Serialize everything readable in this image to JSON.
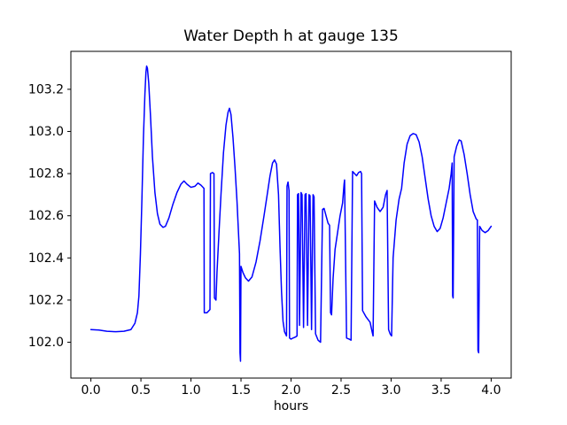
{
  "figure": {
    "background": "#ffffff",
    "frame_color": "#000000"
  },
  "chart_data": {
    "type": "line",
    "title": "Water Depth h at gauge 135",
    "xlabel": "hours",
    "ylabel": "",
    "grid": false,
    "legend": null,
    "xlim": [
      -0.2,
      4.2
    ],
    "ylim": [
      101.83,
      103.38
    ],
    "xticks": [
      {
        "value": 0.0,
        "label": "0.0"
      },
      {
        "value": 0.5,
        "label": "0.5"
      },
      {
        "value": 1.0,
        "label": "1.0"
      },
      {
        "value": 1.5,
        "label": "1.5"
      },
      {
        "value": 2.0,
        "label": "2.0"
      },
      {
        "value": 2.5,
        "label": "2.5"
      },
      {
        "value": 3.0,
        "label": "3.0"
      },
      {
        "value": 3.5,
        "label": "3.5"
      },
      {
        "value": 4.0,
        "label": "4.0"
      }
    ],
    "yticks": [
      {
        "value": 102.0,
        "label": "102.0"
      },
      {
        "value": 102.2,
        "label": "102.2"
      },
      {
        "value": 102.4,
        "label": "102.4"
      },
      {
        "value": 102.6,
        "label": "102.6"
      },
      {
        "value": 102.8,
        "label": "102.8"
      },
      {
        "value": 103.0,
        "label": "103.0"
      },
      {
        "value": 103.2,
        "label": "103.2"
      }
    ],
    "series": [
      {
        "name": "water depth h",
        "color": "#0000ff",
        "line_width": 1.5,
        "points": [
          [
            0.0,
            102.06
          ],
          [
            0.08,
            102.058
          ],
          [
            0.16,
            102.052
          ],
          [
            0.25,
            102.05
          ],
          [
            0.33,
            102.052
          ],
          [
            0.4,
            102.06
          ],
          [
            0.44,
            102.09
          ],
          [
            0.465,
            102.14
          ],
          [
            0.48,
            102.22
          ],
          [
            0.495,
            102.42
          ],
          [
            0.51,
            102.68
          ],
          [
            0.525,
            102.97
          ],
          [
            0.54,
            103.18
          ],
          [
            0.55,
            103.28
          ],
          [
            0.557,
            103.31
          ],
          [
            0.565,
            103.3
          ],
          [
            0.578,
            103.23
          ],
          [
            0.595,
            103.08
          ],
          [
            0.615,
            102.88
          ],
          [
            0.64,
            102.71
          ],
          [
            0.665,
            102.61
          ],
          [
            0.69,
            102.56
          ],
          [
            0.72,
            102.545
          ],
          [
            0.745,
            102.55
          ],
          [
            0.78,
            102.59
          ],
          [
            0.82,
            102.655
          ],
          [
            0.86,
            102.71
          ],
          [
            0.9,
            102.75
          ],
          [
            0.93,
            102.765
          ],
          [
            0.96,
            102.75
          ],
          [
            1.0,
            102.735
          ],
          [
            1.04,
            102.74
          ],
          [
            1.07,
            102.755
          ],
          [
            1.1,
            102.745
          ],
          [
            1.13,
            102.73
          ],
          [
            1.133,
            102.14
          ],
          [
            1.16,
            102.14
          ],
          [
            1.19,
            102.155
          ],
          [
            1.195,
            102.8
          ],
          [
            1.215,
            102.805
          ],
          [
            1.23,
            102.8
          ],
          [
            1.235,
            102.21
          ],
          [
            1.25,
            102.2
          ],
          [
            1.26,
            102.33
          ],
          [
            1.28,
            102.52
          ],
          [
            1.3,
            102.7
          ],
          [
            1.325,
            102.9
          ],
          [
            1.35,
            103.03
          ],
          [
            1.37,
            103.09
          ],
          [
            1.385,
            103.11
          ],
          [
            1.4,
            103.08
          ],
          [
            1.42,
            102.97
          ],
          [
            1.44,
            102.83
          ],
          [
            1.46,
            102.67
          ],
          [
            1.475,
            102.52
          ],
          [
            1.485,
            102.42
          ],
          [
            1.49,
            101.95
          ],
          [
            1.495,
            101.91
          ],
          [
            1.5,
            102.36
          ],
          [
            1.52,
            102.33
          ],
          [
            1.545,
            102.305
          ],
          [
            1.575,
            102.29
          ],
          [
            1.61,
            102.31
          ],
          [
            1.65,
            102.38
          ],
          [
            1.69,
            102.48
          ],
          [
            1.73,
            102.6
          ],
          [
            1.765,
            102.71
          ],
          [
            1.79,
            102.79
          ],
          [
            1.815,
            102.85
          ],
          [
            1.835,
            102.865
          ],
          [
            1.855,
            102.845
          ],
          [
            1.875,
            102.7
          ],
          [
            1.89,
            102.45
          ],
          [
            1.905,
            102.24
          ],
          [
            1.92,
            102.1
          ],
          [
            1.935,
            102.05
          ],
          [
            1.955,
            102.03
          ],
          [
            1.96,
            102.74
          ],
          [
            1.97,
            102.76
          ],
          [
            1.98,
            102.72
          ],
          [
            1.985,
            102.02
          ],
          [
            2.0,
            102.015
          ],
          [
            2.02,
            102.02
          ],
          [
            2.045,
            102.025
          ],
          [
            2.06,
            102.03
          ],
          [
            2.065,
            102.7
          ],
          [
            2.075,
            102.705
          ],
          [
            2.085,
            102.08
          ],
          [
            2.1,
            102.71
          ],
          [
            2.11,
            102.7
          ],
          [
            2.125,
            102.07
          ],
          [
            2.14,
            102.7
          ],
          [
            2.15,
            102.705
          ],
          [
            2.165,
            102.08
          ],
          [
            2.18,
            102.7
          ],
          [
            2.19,
            102.695
          ],
          [
            2.205,
            102.06
          ],
          [
            2.22,
            102.7
          ],
          [
            2.23,
            102.69
          ],
          [
            2.245,
            102.04
          ],
          [
            2.27,
            102.01
          ],
          [
            2.295,
            102.0
          ],
          [
            2.315,
            102.63
          ],
          [
            2.33,
            102.635
          ],
          [
            2.35,
            102.6
          ],
          [
            2.37,
            102.565
          ],
          [
            2.385,
            102.555
          ],
          [
            2.395,
            102.14
          ],
          [
            2.405,
            102.13
          ],
          [
            2.42,
            102.3
          ],
          [
            2.44,
            102.44
          ],
          [
            2.465,
            102.52
          ],
          [
            2.49,
            102.6
          ],
          [
            2.515,
            102.66
          ],
          [
            2.53,
            102.75
          ],
          [
            2.535,
            102.77
          ],
          [
            2.545,
            102.4
          ],
          [
            2.555,
            102.02
          ],
          [
            2.58,
            102.015
          ],
          [
            2.6,
            102.01
          ],
          [
            2.615,
            102.81
          ],
          [
            2.635,
            102.8
          ],
          [
            2.655,
            102.79
          ],
          [
            2.675,
            102.805
          ],
          [
            2.695,
            102.81
          ],
          [
            2.705,
            102.8
          ],
          [
            2.715,
            102.15
          ],
          [
            2.75,
            102.12
          ],
          [
            2.79,
            102.095
          ],
          [
            2.81,
            102.05
          ],
          [
            2.82,
            102.03
          ],
          [
            2.835,
            102.67
          ],
          [
            2.86,
            102.64
          ],
          [
            2.89,
            102.62
          ],
          [
            2.92,
            102.64
          ],
          [
            2.945,
            102.7
          ],
          [
            2.96,
            102.72
          ],
          [
            2.975,
            102.06
          ],
          [
            2.99,
            102.04
          ],
          [
            3.005,
            102.03
          ],
          [
            3.02,
            102.4
          ],
          [
            3.05,
            102.58
          ],
          [
            3.08,
            102.68
          ],
          [
            3.105,
            102.73
          ],
          [
            3.13,
            102.85
          ],
          [
            3.16,
            102.94
          ],
          [
            3.19,
            102.98
          ],
          [
            3.22,
            102.99
          ],
          [
            3.25,
            102.985
          ],
          [
            3.28,
            102.95
          ],
          [
            3.31,
            102.88
          ],
          [
            3.34,
            102.78
          ],
          [
            3.37,
            102.68
          ],
          [
            3.4,
            102.6
          ],
          [
            3.43,
            102.55
          ],
          [
            3.46,
            102.525
          ],
          [
            3.49,
            102.54
          ],
          [
            3.52,
            102.59
          ],
          [
            3.55,
            102.66
          ],
          [
            3.58,
            102.73
          ],
          [
            3.6,
            102.8
          ],
          [
            3.61,
            102.85
          ],
          [
            3.615,
            102.22
          ],
          [
            3.62,
            102.21
          ],
          [
            3.63,
            102.88
          ],
          [
            3.655,
            102.93
          ],
          [
            3.68,
            102.96
          ],
          [
            3.7,
            102.955
          ],
          [
            3.73,
            102.89
          ],
          [
            3.76,
            102.8
          ],
          [
            3.79,
            102.7
          ],
          [
            3.82,
            102.62
          ],
          [
            3.85,
            102.585
          ],
          [
            3.862,
            102.58
          ],
          [
            3.868,
            101.96
          ],
          [
            3.875,
            101.95
          ],
          [
            3.885,
            102.55
          ],
          [
            3.91,
            102.53
          ],
          [
            3.94,
            102.52
          ],
          [
            3.97,
            102.53
          ],
          [
            4.0,
            102.55
          ]
        ]
      }
    ]
  }
}
